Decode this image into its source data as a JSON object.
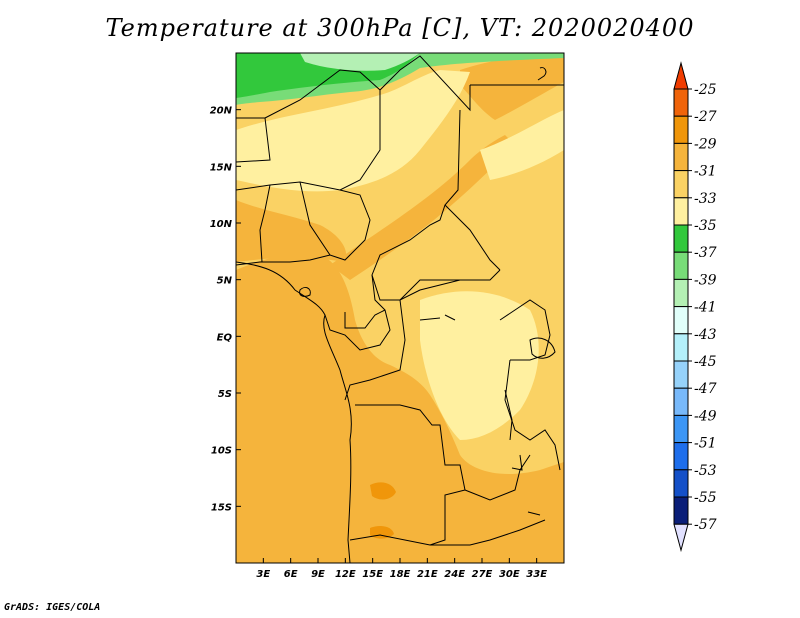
{
  "title": "Temperature at 300hPa [C], VT: 2020020400",
  "footer": "GrADS: IGES/COLA",
  "map": {
    "lon_range": [
      0,
      36
    ],
    "lat_range": [
      -20,
      25
    ],
    "lon_labels": [
      {
        "lon": 3,
        "label": "3E"
      },
      {
        "lon": 6,
        "label": "6E"
      },
      {
        "lon": 9,
        "label": "9E"
      },
      {
        "lon": 12,
        "label": "12E"
      },
      {
        "lon": 15,
        "label": "15E"
      },
      {
        "lon": 18,
        "label": "18E"
      },
      {
        "lon": 21,
        "label": "21E"
      },
      {
        "lon": 24,
        "label": "24E"
      },
      {
        "lon": 27,
        "label": "27E"
      },
      {
        "lon": 30,
        "label": "30E"
      },
      {
        "lon": 33,
        "label": "33E"
      }
    ],
    "lat_labels": [
      {
        "lat": 20,
        "label": "20N"
      },
      {
        "lat": 15,
        "label": "15N"
      },
      {
        "lat": 10,
        "label": "10N"
      },
      {
        "lat": 5,
        "label": "5N"
      },
      {
        "lat": 0,
        "label": "EQ"
      },
      {
        "lat": -5,
        "label": "5S"
      },
      {
        "lat": -10,
        "label": "10S"
      },
      {
        "lat": -15,
        "label": "15S"
      }
    ]
  },
  "colorbar": {
    "labels": [
      "-25",
      "-27",
      "-29",
      "-31",
      "-33",
      "-35",
      "-37",
      "-39",
      "-41",
      "-43",
      "-45",
      "-47",
      "-49",
      "-51",
      "-53",
      "-55",
      "-57"
    ],
    "colors": [
      "#f0640a",
      "#f0960a",
      "#f5b43c",
      "#fad264",
      "#fff0a0",
      "#32c83c",
      "#78dc78",
      "#b4f0b4",
      "#e1fffa",
      "#b4f0fa",
      "#96d2fa",
      "#78b9fa",
      "#3c96f5",
      "#1e6eeb",
      "#1450c8",
      "#0a1e78"
    ],
    "top_arrow_color": "#f03c00",
    "bottom_arrow_color": "#e1e1ff"
  }
}
